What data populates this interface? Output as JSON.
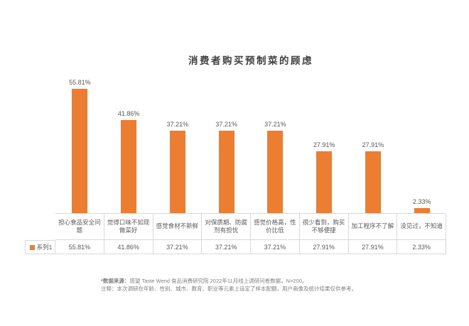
{
  "chart_data": {
    "type": "bar",
    "title": "消费者购买预制菜的顾虑",
    "categories": [
      "担心食品安全问题",
      "觉得口味不如现做菜好",
      "感觉食材不新鲜",
      "对保质期、防腐剂有担忧",
      "感觉价格高，性价比低",
      "很少看到，购买不够便捷",
      "加工程序不了解",
      "没见过，不知道"
    ],
    "series": [
      {
        "name": "系列1",
        "values": [
          55.81,
          41.86,
          37.21,
          37.21,
          37.21,
          27.91,
          27.91,
          2.33
        ],
        "value_labels": [
          "55.81%",
          "41.86%",
          "37.21%",
          "37.21%",
          "37.21%",
          "27.91%",
          "27.91%",
          "2.33%"
        ]
      }
    ],
    "bar_color": "#ED7D31",
    "ylim": [
      0,
      60
    ],
    "grid": false,
    "legend_position": "bottom-data-table",
    "data_table_shown": true
  },
  "footnote": {
    "source_prefix": "*数据来源：",
    "source_text": "塔望 Taste Wend 食品消费研究院 2022年11月线上调研问卷数据，N=200。",
    "note_text": "注释：本次调研在年龄、性别、城市、教育、职业等元素上设定了样本配额，用户画像及统计结果仅供参考。"
  }
}
